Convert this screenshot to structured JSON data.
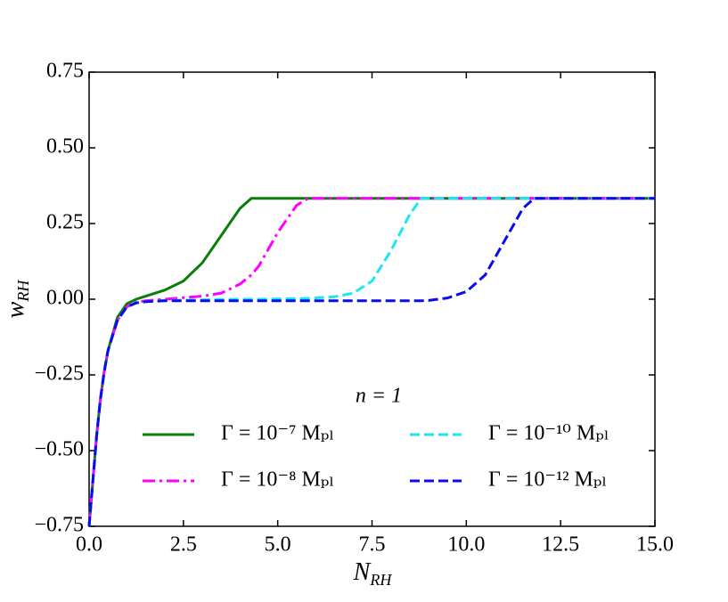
{
  "chart_data": {
    "type": "line",
    "xlabel": {
      "main": "N",
      "sub": "RH"
    },
    "ylabel": {
      "main": "w",
      "sub": "RH"
    },
    "legend_title": "n = 1",
    "legend": "lower right",
    "x": [
      0,
      0.1,
      0.2,
      0.3,
      0.4,
      0.5,
      0.75,
      1,
      1.25,
      1.5,
      2,
      2.5,
      3,
      3.5,
      4,
      4.3,
      4.5,
      5,
      5.5,
      5.8,
      6,
      6.5,
      7,
      7.5,
      8,
      8.5,
      8.8,
      9,
      9.5,
      10,
      10.5,
      11,
      11.5,
      11.8,
      12,
      13,
      14,
      15
    ],
    "series": [
      {
        "name": "Γ = 10⁻⁷ Mₚₗ",
        "color": "#0a7d0a",
        "linestyle": "solid",
        "values": [
          -0.75,
          -0.6,
          -0.45,
          -0.33,
          -0.24,
          -0.17,
          -0.06,
          -0.015,
          0.0,
          0.01,
          0.03,
          0.06,
          0.12,
          0.21,
          0.3,
          0.333,
          0.333,
          0.333,
          0.333,
          0.333,
          0.333,
          0.333,
          0.333,
          0.333,
          0.333,
          0.333,
          0.333,
          0.333,
          0.333,
          0.333,
          0.333,
          0.333,
          0.333,
          0.333,
          0.333,
          0.333,
          0.333,
          0.333
        ]
      },
      {
        "name": "Γ = 10⁻⁸ Mₚₗ",
        "color": "#ff00ff",
        "linestyle": "dashdot",
        "values": [
          -0.75,
          -0.6,
          -0.45,
          -0.33,
          -0.24,
          -0.17,
          -0.07,
          -0.025,
          -0.01,
          -0.005,
          0.0,
          0.005,
          0.01,
          0.02,
          0.05,
          0.08,
          0.11,
          0.22,
          0.31,
          0.333,
          0.333,
          0.333,
          0.333,
          0.333,
          0.333,
          0.333,
          0.333,
          0.333,
          0.333,
          0.333,
          0.333,
          0.333,
          0.333,
          0.333,
          0.333,
          0.333,
          0.333,
          0.333
        ]
      },
      {
        "name": "Γ = 10⁻¹⁰ Mₚₗ",
        "color": "#1ee6f0",
        "linestyle": "dashed",
        "values": [
          -0.75,
          -0.6,
          -0.45,
          -0.33,
          -0.24,
          -0.17,
          -0.07,
          -0.025,
          -0.012,
          -0.008,
          -0.004,
          -0.003,
          -0.002,
          -0.001,
          0.0,
          0.0,
          0.0,
          0.001,
          0.002,
          0.003,
          0.004,
          0.008,
          0.02,
          0.06,
          0.16,
          0.28,
          0.333,
          0.333,
          0.333,
          0.333,
          0.333,
          0.333,
          0.333,
          0.333,
          0.333,
          0.333,
          0.333,
          0.333
        ]
      },
      {
        "name": "Γ = 10⁻¹² Mₚₗ",
        "color": "#0a0aee",
        "linestyle": "dashed",
        "values": [
          -0.75,
          -0.6,
          -0.45,
          -0.33,
          -0.24,
          -0.17,
          -0.07,
          -0.025,
          -0.012,
          -0.008,
          -0.005,
          -0.005,
          -0.005,
          -0.005,
          -0.005,
          -0.005,
          -0.005,
          -0.005,
          -0.005,
          -0.005,
          -0.005,
          -0.005,
          -0.005,
          -0.005,
          -0.005,
          -0.005,
          -0.005,
          -0.004,
          0.004,
          0.025,
          0.08,
          0.19,
          0.3,
          0.333,
          0.333,
          0.333,
          0.333,
          0.333
        ]
      }
    ],
    "xlim": [
      0,
      15
    ],
    "ylim": [
      -0.75,
      0.75
    ],
    "xticks": [
      {
        "value": 0,
        "label": "0.0"
      },
      {
        "value": 2.5,
        "label": "2.5"
      },
      {
        "value": 5,
        "label": "5.0"
      },
      {
        "value": 7.5,
        "label": "7.5"
      },
      {
        "value": 10,
        "label": "10.0"
      },
      {
        "value": 12.5,
        "label": "12.5"
      },
      {
        "value": 15,
        "label": "15.0"
      }
    ],
    "yticks": [
      {
        "value": -0.75,
        "label": "−0.75"
      },
      {
        "value": -0.5,
        "label": "−0.50"
      },
      {
        "value": -0.25,
        "label": "−0.25"
      },
      {
        "value": 0,
        "label": "0.00"
      },
      {
        "value": 0.25,
        "label": "0.25"
      },
      {
        "value": 0.5,
        "label": "0.50"
      },
      {
        "value": 0.75,
        "label": "0.75"
      }
    ]
  }
}
